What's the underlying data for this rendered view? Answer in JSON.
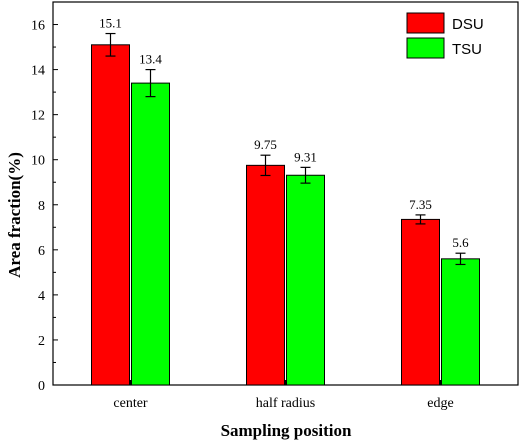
{
  "chart_data": {
    "type": "bar",
    "categories": [
      "center",
      "half radius",
      "edge"
    ],
    "series": [
      {
        "name": "DSU",
        "color": "#ff0000",
        "values": [
          15.1,
          9.75,
          7.35
        ],
        "labels": [
          "15.1",
          "9.75",
          "7.35"
        ],
        "errors": [
          0.5,
          0.45,
          0.2
        ]
      },
      {
        "name": "TSU",
        "color": "#00ff00",
        "values": [
          13.4,
          9.31,
          5.6
        ],
        "labels": [
          "13.4",
          "9.31",
          "5.6"
        ],
        "errors": [
          0.6,
          0.35,
          0.25
        ]
      }
    ],
    "xlabel": "Sampling position",
    "ylabel": "Area fraction(%)",
    "ylim": [
      0,
      17
    ],
    "yticks": [
      0,
      2,
      4,
      6,
      8,
      10,
      12,
      14,
      16
    ],
    "legend_position": "top-right",
    "grid": false
  }
}
